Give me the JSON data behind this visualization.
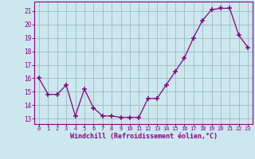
{
  "x": [
    0,
    1,
    2,
    3,
    4,
    5,
    6,
    7,
    8,
    9,
    10,
    11,
    12,
    13,
    14,
    15,
    16,
    17,
    18,
    19,
    20,
    21,
    22,
    23
  ],
  "y": [
    16,
    14.8,
    14.8,
    15.5,
    13.2,
    15.2,
    13.8,
    13.2,
    13.2,
    13.1,
    13.1,
    13.1,
    14.5,
    14.5,
    15.5,
    16.5,
    17.5,
    19.0,
    20.3,
    21.1,
    21.2,
    21.2,
    19.2,
    18.3
  ],
  "line_color": "#880088",
  "bg_color": "#cce8ee",
  "grid_color": "#99bbbb",
  "xlabel": "Windchill (Refroidissement éolien,°C)",
  "ytick_labels": [
    "13",
    "14",
    "15",
    "16",
    "17",
    "18",
    "19",
    "20",
    "21"
  ],
  "ytick_vals": [
    13,
    14,
    15,
    16,
    17,
    18,
    19,
    20,
    21
  ],
  "xtick_vals": [
    0,
    1,
    2,
    3,
    4,
    5,
    6,
    7,
    8,
    9,
    10,
    11,
    12,
    13,
    14,
    15,
    16,
    17,
    18,
    19,
    20,
    21,
    22,
    23
  ],
  "xtick_labels": [
    "0",
    "1",
    "2",
    "3",
    "4",
    "5",
    "6",
    "7",
    "8",
    "9",
    "10",
    "11",
    "12",
    "13",
    "14",
    "15",
    "16",
    "17",
    "18",
    "19",
    "20",
    "21",
    "22",
    "23"
  ],
  "ylim": [
    12.6,
    21.7
  ],
  "xlim": [
    -0.5,
    23.5
  ]
}
